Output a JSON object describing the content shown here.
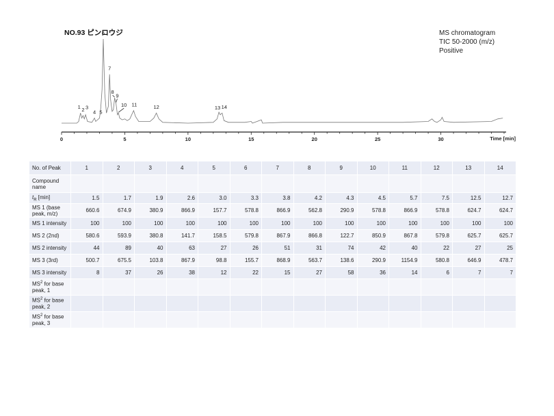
{
  "title": "NO.93 ピンロウジ",
  "info_lines": [
    "MS chromatogram",
    "TIC 50-2000 (m/z)",
    "Positive"
  ],
  "chart_data": {
    "type": "line",
    "xlabel": "Time [min]",
    "xlim": [
      0,
      35
    ],
    "x_ticks": [
      0,
      5,
      10,
      15,
      20,
      25,
      30
    ],
    "line_color": "#777777",
    "points": [
      [
        0.0,
        0.0
      ],
      [
        1.2,
        0.0
      ],
      [
        1.35,
        0.02
      ],
      [
        1.5,
        0.12
      ],
      [
        1.6,
        0.06
      ],
      [
        1.7,
        0.09
      ],
      [
        1.8,
        0.05
      ],
      [
        1.9,
        0.1
      ],
      [
        2.05,
        0.02
      ],
      [
        2.4,
        0.01
      ],
      [
        2.6,
        0.06
      ],
      [
        2.7,
        0.02
      ],
      [
        3.0,
        0.06
      ],
      [
        3.1,
        0.18
      ],
      [
        3.2,
        0.4
      ],
      [
        3.3,
        1.0
      ],
      [
        3.42,
        0.35
      ],
      [
        3.55,
        0.12
      ],
      [
        3.7,
        0.2
      ],
      [
        3.8,
        0.58
      ],
      [
        3.88,
        0.28
      ],
      [
        4.0,
        0.14
      ],
      [
        4.1,
        0.16
      ],
      [
        4.2,
        0.3
      ],
      [
        4.3,
        0.24
      ],
      [
        4.42,
        0.1
      ],
      [
        4.5,
        0.12
      ],
      [
        4.6,
        0.06
      ],
      [
        4.8,
        0.04
      ],
      [
        5.0,
        0.05
      ],
      [
        5.2,
        0.03
      ],
      [
        5.4,
        0.05
      ],
      [
        5.55,
        0.1
      ],
      [
        5.7,
        0.15
      ],
      [
        5.85,
        0.08
      ],
      [
        6.1,
        0.02
      ],
      [
        7.0,
        0.02
      ],
      [
        7.3,
        0.06
      ],
      [
        7.5,
        0.12
      ],
      [
        7.7,
        0.05
      ],
      [
        8.0,
        0.01
      ],
      [
        10.0,
        0.0
      ],
      [
        12.0,
        0.01
      ],
      [
        12.3,
        0.05
      ],
      [
        12.45,
        0.13
      ],
      [
        12.55,
        0.1
      ],
      [
        12.7,
        0.12
      ],
      [
        12.85,
        0.03
      ],
      [
        13.2,
        0.01
      ],
      [
        14.5,
        0.01
      ],
      [
        15.0,
        0.02
      ],
      [
        15.1,
        0.0
      ],
      [
        15.8,
        0.04
      ],
      [
        15.9,
        0.0
      ],
      [
        17.5,
        0.01
      ],
      [
        21.0,
        0.01
      ],
      [
        27.0,
        0.01
      ],
      [
        29.0,
        0.02
      ],
      [
        29.3,
        0.05
      ],
      [
        29.5,
        0.02
      ],
      [
        29.7,
        0.01
      ],
      [
        30.0,
        0.04
      ],
      [
        30.1,
        0.07
      ],
      [
        30.25,
        0.02
      ],
      [
        31.0,
        0.01
      ],
      [
        34.0,
        0.02
      ],
      [
        34.5,
        0.05
      ],
      [
        34.9,
        0.06
      ]
    ],
    "peak_labels": [
      {
        "label": "1",
        "t": 1.5
      },
      {
        "label": "2",
        "t": 1.7
      },
      {
        "label": "3",
        "t": 1.9
      },
      {
        "label": "4",
        "t": 2.6
      },
      {
        "label": "5",
        "t": 3.0
      },
      {
        "label": "6",
        "t": 3.3
      },
      {
        "label": "7",
        "t": 3.8
      },
      {
        "label": "8",
        "t": 4.2
      },
      {
        "label": "9",
        "t": 4.3
      },
      {
        "label": "10",
        "t": 4.5
      },
      {
        "label": "11",
        "t": 5.7
      },
      {
        "label": "12",
        "t": 7.5
      },
      {
        "label": "13",
        "t": 12.5
      },
      {
        "label": "14",
        "t": 12.7
      }
    ]
  },
  "table": {
    "header_label": "No. of Peak",
    "peaks": [
      "1",
      "2",
      "3",
      "4",
      "5",
      "6",
      "7",
      "8",
      "9",
      "10",
      "11",
      "12",
      "13",
      "14"
    ],
    "rows": [
      {
        "label": "Compound name",
        "values": [
          "",
          "",
          "",
          "",
          "",
          "",
          "",
          "",
          "",
          "",
          "",
          "",
          "",
          ""
        ]
      },
      {
        "label_main": "t",
        "label_sub": "R",
        "label_rest": " [min]",
        "values": [
          "1.5",
          "1.7",
          "1.9",
          "2.6",
          "3.0",
          "3.3",
          "3.8",
          "4.2",
          "4.3",
          "4.5",
          "5.7",
          "7.5",
          "12.5",
          "12.7"
        ]
      },
      {
        "label": "MS 1 (base peak, m/z)",
        "values": [
          "660.6",
          "674.9",
          "380.9",
          "866.9",
          "157.7",
          "578.8",
          "866.9",
          "562.8",
          "290.9",
          "578.8",
          "866.9",
          "578.8",
          "624.7",
          "624.7"
        ]
      },
      {
        "label": "MS 1 intensity",
        "values": [
          "100",
          "100",
          "100",
          "100",
          "100",
          "100",
          "100",
          "100",
          "100",
          "100",
          "100",
          "100",
          "100",
          "100"
        ]
      },
      {
        "label": "MS 2 (2nd)",
        "values": [
          "580.6",
          "593.9",
          "380.8",
          "141.7",
          "158.5",
          "579.8",
          "867.9",
          "866.8",
          "122.7",
          "850.9",
          "867.8",
          "579.8",
          "625.7",
          "625.7"
        ]
      },
      {
        "label": "MS 2 intensity",
        "values": [
          "44",
          "89",
          "40",
          "63",
          "27",
          "26",
          "51",
          "31",
          "74",
          "42",
          "40",
          "22",
          "27",
          "25"
        ]
      },
      {
        "label": "MS 3 (3rd)",
        "values": [
          "500.7",
          "675.5",
          "103.8",
          "867.9",
          "98.8",
          "155.7",
          "868.9",
          "563.7",
          "138.6",
          "290.9",
          "1154.9",
          "580.8",
          "646.9",
          "478.7"
        ]
      },
      {
        "label": "MS 3 intensity",
        "values": [
          "8",
          "37",
          "26",
          "38",
          "12",
          "22",
          "15",
          "27",
          "58",
          "36",
          "14",
          "6",
          "7",
          "7"
        ]
      },
      {
        "label_main": "MS",
        "label_sup": "2",
        "label_rest": " for base peak, 1",
        "values": [
          "",
          "",
          "",
          "",
          "",
          "",
          "",
          "",
          "",
          "",
          "",
          "",
          "",
          ""
        ]
      },
      {
        "label_main": "MS",
        "label_sup": "2",
        "label_rest": " for base peak, 2",
        "values": [
          "",
          "",
          "",
          "",
          "",
          "",
          "",
          "",
          "",
          "",
          "",
          "",
          "",
          ""
        ]
      },
      {
        "label_main": "MS",
        "label_sup": "2",
        "label_rest": " for base peak, 3",
        "values": [
          "",
          "",
          "",
          "",
          "",
          "",
          "",
          "",
          "",
          "",
          "",
          "",
          "",
          ""
        ]
      }
    ]
  }
}
